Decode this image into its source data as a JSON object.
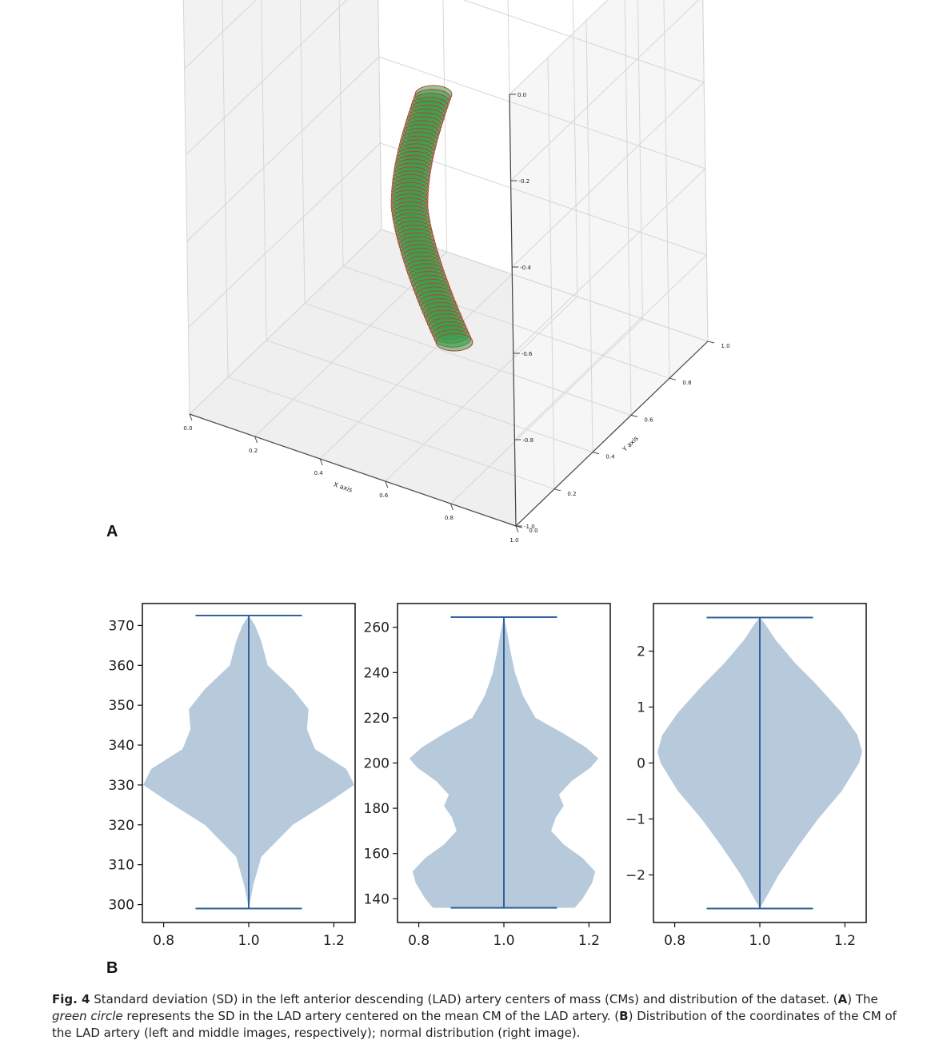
{
  "panel_a_label": "A",
  "panel_b_label": "B",
  "colors": {
    "violin_fill": "#b6cadb",
    "violin_line": "#33629a",
    "disc_fill": "#3a9a4a",
    "disc_edge": "#b24534",
    "grid": "#d6d6d6"
  },
  "chart_data": [
    {
      "type": "scatter",
      "subtype": "3d-stacked-circles",
      "xlabel": "X axis",
      "ylabel": "Y axis",
      "xlim": [
        0,
        1
      ],
      "ylim": [
        0,
        1
      ],
      "zlim": [
        -1,
        0
      ],
      "x_ticks": [
        "0.0",
        "0.2",
        "0.4",
        "0.6",
        "0.8",
        "1.0"
      ],
      "y_ticks": [
        "0.0",
        "0.2",
        "0.4",
        "0.6",
        "0.8",
        "1.0"
      ],
      "z_ticks": [
        "0.0",
        "-0.2",
        "-0.4",
        "-0.6",
        "-0.8",
        "-1.0"
      ],
      "grid": true
    },
    {
      "type": "violin",
      "xlim": [
        0.75,
        1.25
      ],
      "ylim": [
        295.5,
        375.5
      ],
      "x_ticks": [
        "0.8",
        "1.0",
        "1.2"
      ],
      "y_ticks": [
        "300",
        "310",
        "320",
        "330",
        "340",
        "350",
        "360",
        "370"
      ],
      "min": 299,
      "max": 372.5,
      "position": 1.0,
      "density_profile": [
        [
          299,
          0.0
        ],
        [
          305,
          0.03
        ],
        [
          312,
          0.08
        ],
        [
          320,
          0.28
        ],
        [
          326,
          0.52
        ],
        [
          330,
          0.67
        ],
        [
          334,
          0.62
        ],
        [
          339,
          0.42
        ],
        [
          344,
          0.37
        ],
        [
          349,
          0.38
        ],
        [
          354,
          0.28
        ],
        [
          360,
          0.12
        ],
        [
          366,
          0.08
        ],
        [
          370,
          0.04
        ],
        [
          372.5,
          0.0
        ]
      ]
    },
    {
      "type": "violin",
      "xlim": [
        0.75,
        1.25
      ],
      "ylim": [
        129.5,
        270.5
      ],
      "x_ticks": [
        "0.8",
        "1.0",
        "1.2"
      ],
      "y_ticks": [
        "140",
        "160",
        "180",
        "200",
        "220",
        "240",
        "260"
      ],
      "min": 136,
      "max": 264.5,
      "position": 1.0,
      "density_profile": [
        [
          136,
          0.45
        ],
        [
          140,
          0.5
        ],
        [
          147,
          0.56
        ],
        [
          152,
          0.58
        ],
        [
          158,
          0.5
        ],
        [
          164,
          0.38
        ],
        [
          170,
          0.3
        ],
        [
          176,
          0.33
        ],
        [
          181,
          0.38
        ],
        [
          186,
          0.35
        ],
        [
          192,
          0.43
        ],
        [
          198,
          0.55
        ],
        [
          202,
          0.6
        ],
        [
          207,
          0.52
        ],
        [
          213,
          0.38
        ],
        [
          220,
          0.2
        ],
        [
          230,
          0.12
        ],
        [
          240,
          0.07
        ],
        [
          250,
          0.04
        ],
        [
          258,
          0.02
        ],
        [
          264.5,
          0.0
        ]
      ]
    },
    {
      "type": "violin",
      "xlim": [
        0.75,
        1.25
      ],
      "ylim": [
        -2.85,
        2.85
      ],
      "x_ticks": [
        "0.8",
        "1.0",
        "1.2"
      ],
      "y_ticks": [
        "2",
        "1",
        "0",
        "−1",
        "−2"
      ],
      "min": -2.6,
      "max": 2.6,
      "position": 1.0,
      "density_profile": [
        [
          -2.6,
          0.0
        ],
        [
          -2.4,
          0.04
        ],
        [
          -2.0,
          0.12
        ],
        [
          -1.5,
          0.24
        ],
        [
          -1.0,
          0.37
        ],
        [
          -0.5,
          0.52
        ],
        [
          0.0,
          0.63
        ],
        [
          0.2,
          0.65
        ],
        [
          0.5,
          0.62
        ],
        [
          0.9,
          0.52
        ],
        [
          1.4,
          0.36
        ],
        [
          1.8,
          0.22
        ],
        [
          2.2,
          0.1
        ],
        [
          2.5,
          0.03
        ],
        [
          2.6,
          0.0
        ]
      ]
    }
  ],
  "caption": {
    "fig_label": "Fig. 4",
    "text_1": " Standard deviation (SD) in the left anterior descending (LAD) artery centers of mass (CMs) and distribution of the dataset. (",
    "ref_a1": "A",
    "text_2": ") The ",
    "italic": "green circle",
    "text_3": " represents the SD in the LAD artery centered on the mean CM of the LAD artery. (",
    "ref_b": "B",
    "text_4": ") Distribution of the coordinates of the CM of the LAD artery (left and middle images, respectively); normal distribution (right image)."
  }
}
